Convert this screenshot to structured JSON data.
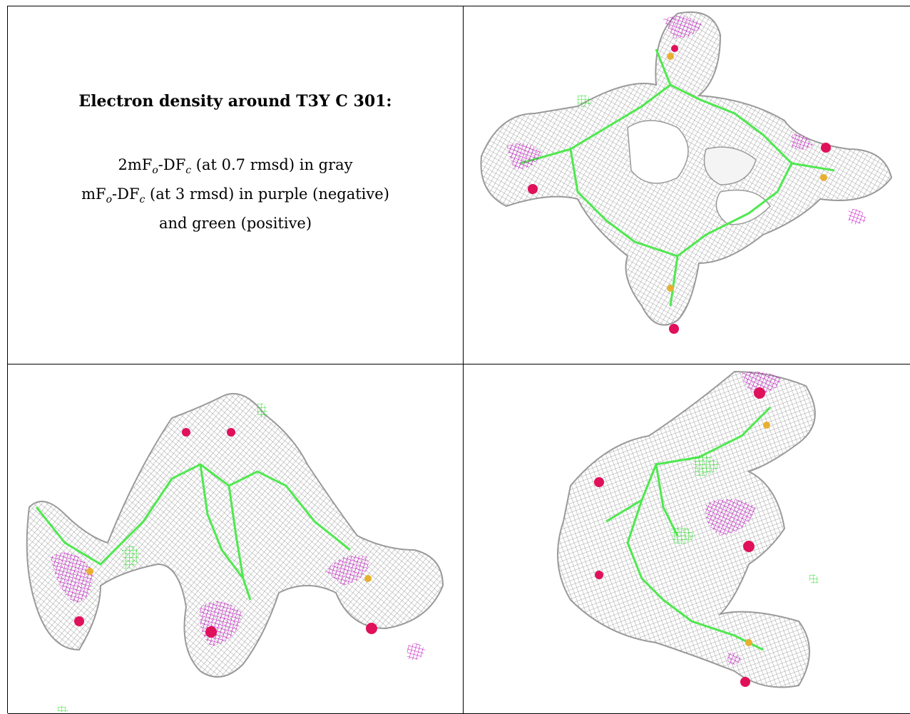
{
  "caption": {
    "title": "Electron density around T3Y C 301:",
    "line1": {
      "pre": "2mF",
      "sub1": "o",
      "mid": "-DF",
      "sub2": "c",
      "post": " (at 0.7 rmsd) in gray"
    },
    "line2": {
      "pre": "mF",
      "sub1": "o",
      "mid": "-DF",
      "sub2": "c",
      "post": " (at 3 rmsd) in purple (negative)"
    },
    "line3": "and green (positive)"
  },
  "colors": {
    "mesh_gray": "#8a8a8a",
    "negative_purple": "#c000c0",
    "positive_green": "#22e022",
    "bond_green": "#4fe84f",
    "oxygen_red": "#e0105a",
    "sulfur_orange": "#e8b030"
  },
  "panels": [
    "density-view-top",
    "density-view-side",
    "density-view-oblique"
  ]
}
